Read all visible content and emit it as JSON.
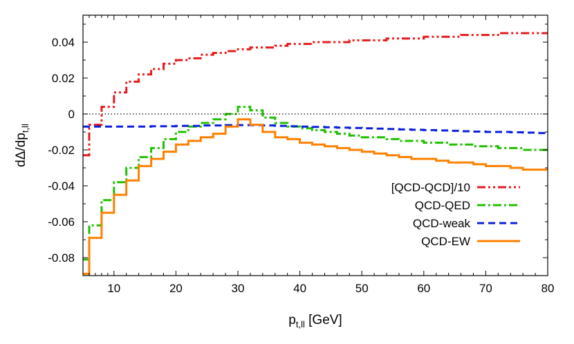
{
  "chart_data": {
    "type": "line",
    "style": "step",
    "xlabel": {
      "main": "p",
      "sub": "t,ll",
      "unit": " [GeV]"
    },
    "ylabel": {
      "main": "dΔ/dp",
      "sub": "t,ll"
    },
    "xlim": [
      5,
      80
    ],
    "ylim": [
      -0.09,
      0.055
    ],
    "xticks": [
      10,
      20,
      30,
      40,
      50,
      60,
      70,
      80
    ],
    "yticks": [
      -0.08,
      -0.06,
      -0.04,
      -0.02,
      0,
      0.02,
      0.04
    ],
    "ytick_labels": [
      "-0.08",
      "-0.06",
      "-0.04",
      "-0.02",
      "0",
      "0.02",
      "0.04"
    ],
    "xtick_labels": [
      "10",
      "20",
      "30",
      "40",
      "50",
      "60",
      "70",
      "80"
    ],
    "zero_line": true,
    "grid": false,
    "legend_position": "bottom-right",
    "bin_edges": [
      5,
      6,
      8,
      10,
      12,
      14,
      16,
      18,
      20,
      22,
      24,
      26,
      28,
      30,
      32,
      34,
      36,
      38,
      40,
      42,
      44,
      46,
      48,
      50,
      52,
      54,
      56,
      58,
      60,
      62,
      64,
      66,
      68,
      70,
      72,
      74,
      76,
      78,
      80
    ],
    "series": [
      {
        "name": "[QCD-QCD]/10",
        "color": "#e41a1c",
        "dash": "dash-dot-dot",
        "values": [
          -0.023,
          -0.006,
          0.004,
          0.012,
          0.018,
          0.022,
          0.025,
          0.028,
          0.03,
          0.031,
          0.033,
          0.034,
          0.035,
          0.036,
          0.037,
          0.037,
          0.038,
          0.039,
          0.039,
          0.04,
          0.04,
          0.04,
          0.041,
          0.041,
          0.041,
          0.042,
          0.042,
          0.042,
          0.043,
          0.043,
          0.043,
          0.044,
          0.044,
          0.044,
          0.045,
          0.045,
          0.045,
          0.045
        ]
      },
      {
        "name": "QCD-QED",
        "color": "#1fbf00",
        "dash": "dash-dot",
        "values": [
          -0.081,
          -0.062,
          -0.048,
          -0.038,
          -0.03,
          -0.024,
          -0.019,
          -0.014,
          -0.01,
          -0.007,
          -0.005,
          -0.003,
          0.0,
          0.004,
          0.002,
          -0.002,
          -0.005,
          -0.007,
          -0.008,
          -0.009,
          -0.01,
          -0.011,
          -0.012,
          -0.013,
          -0.013,
          -0.014,
          -0.015,
          -0.015,
          -0.016,
          -0.016,
          -0.017,
          -0.017,
          -0.018,
          -0.018,
          -0.019,
          -0.019,
          -0.02,
          -0.02
        ]
      },
      {
        "name": "QCD-weak",
        "color": "#0a1fdc",
        "dash": "dashed",
        "values": [
          -0.007,
          -0.007,
          -0.007,
          -0.007,
          -0.007,
          -0.007,
          -0.0068,
          -0.0068,
          -0.0066,
          -0.0066,
          -0.0064,
          -0.0064,
          -0.0062,
          -0.0062,
          -0.0062,
          -0.0064,
          -0.0066,
          -0.0068,
          -0.007,
          -0.0072,
          -0.0074,
          -0.0076,
          -0.0078,
          -0.008,
          -0.0082,
          -0.0084,
          -0.0086,
          -0.0088,
          -0.009,
          -0.0092,
          -0.0094,
          -0.0096,
          -0.0098,
          -0.01,
          -0.01,
          -0.0102,
          -0.0104,
          -0.0106
        ]
      },
      {
        "name": "QCD-EW",
        "color": "#ff8000",
        "dash": "solid",
        "values": [
          -0.089,
          -0.069,
          -0.055,
          -0.045,
          -0.037,
          -0.029,
          -0.025,
          -0.021,
          -0.017,
          -0.015,
          -0.013,
          -0.011,
          -0.007,
          -0.003,
          -0.006,
          -0.01,
          -0.013,
          -0.014,
          -0.016,
          -0.017,
          -0.018,
          -0.019,
          -0.02,
          -0.021,
          -0.022,
          -0.023,
          -0.024,
          -0.025,
          -0.025,
          -0.026,
          -0.027,
          -0.027,
          -0.028,
          -0.029,
          -0.029,
          -0.03,
          -0.031,
          -0.031
        ]
      }
    ]
  }
}
